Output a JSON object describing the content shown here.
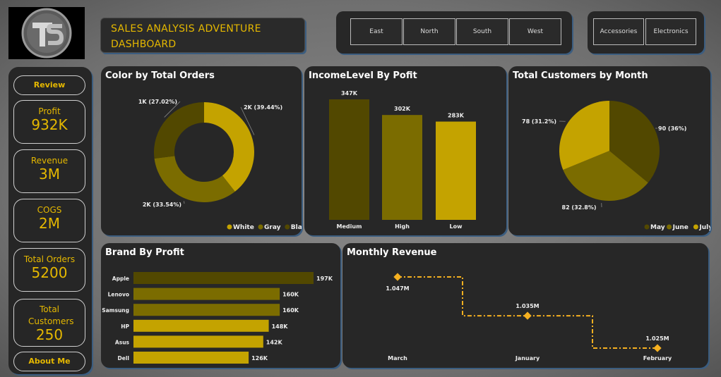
{
  "header": {
    "title_line1": "SALES ANALYSIS ADVENTURE",
    "title_line2": "DASHBOARD"
  },
  "region_slicer": [
    "East",
    "North",
    "South",
    "West"
  ],
  "category_slicer": [
    "Accessories",
    "Electronics"
  ],
  "sidebar": {
    "review": "Review",
    "about": "About Me",
    "kpis": [
      {
        "label": "Profit",
        "value": "932K"
      },
      {
        "label": "Revenue",
        "value": "3M"
      },
      {
        "label": "COGS",
        "value": "2M"
      },
      {
        "label": "Total Orders",
        "value": "5200"
      },
      {
        "label": "Total Customers",
        "value": "250"
      }
    ]
  },
  "colors": {
    "dark": "#524800",
    "mid": "#7b6c00",
    "bright": "#c4a300",
    "accent": "#e5b800",
    "line": "#f5b020"
  },
  "chart_data": [
    {
      "type": "pie",
      "variant": "donut",
      "title": "Color by Total Orders",
      "categories": [
        "White",
        "Gray",
        "Black"
      ],
      "values": [
        2050,
        1744,
        1405
      ],
      "labels": [
        "2K (39.44%)",
        "2K (33.54%)",
        "1K (27.02%)"
      ],
      "legend": "bottom-right"
    },
    {
      "type": "bar",
      "title": "IncomeLevel By Pofit",
      "categories": [
        "Medium",
        "High",
        "Low"
      ],
      "values": [
        347,
        302,
        283
      ],
      "labels": [
        "347K",
        "302K",
        "283K"
      ],
      "ylim": [
        0,
        360
      ]
    },
    {
      "type": "pie",
      "title": "Total Customers by Month",
      "categories": [
        "May",
        "June",
        "July"
      ],
      "values": [
        90,
        82,
        78
      ],
      "labels": [
        "90 (36%)",
        "82 (32.8%)",
        "78 (31.2%)"
      ],
      "legend": "bottom-right"
    },
    {
      "type": "bar",
      "orientation": "horizontal",
      "title": "Brand By Profit",
      "categories": [
        "Apple",
        "Lenovo",
        "Samsung",
        "HP",
        "Asus",
        "Dell"
      ],
      "values": [
        197,
        160,
        160,
        148,
        142,
        126
      ],
      "labels": [
        "197K",
        "160K",
        "160K",
        "148K",
        "142K",
        "126K"
      ],
      "xlim": [
        0,
        200
      ]
    },
    {
      "type": "line",
      "title": "Monthly Revenue",
      "categories": [
        "March",
        "January",
        "February"
      ],
      "values": [
        1.047,
        1.035,
        1.025
      ],
      "labels": [
        "1.047M",
        "1.035M",
        "1.025M"
      ],
      "ylim": [
        1.025,
        1.047
      ]
    }
  ]
}
